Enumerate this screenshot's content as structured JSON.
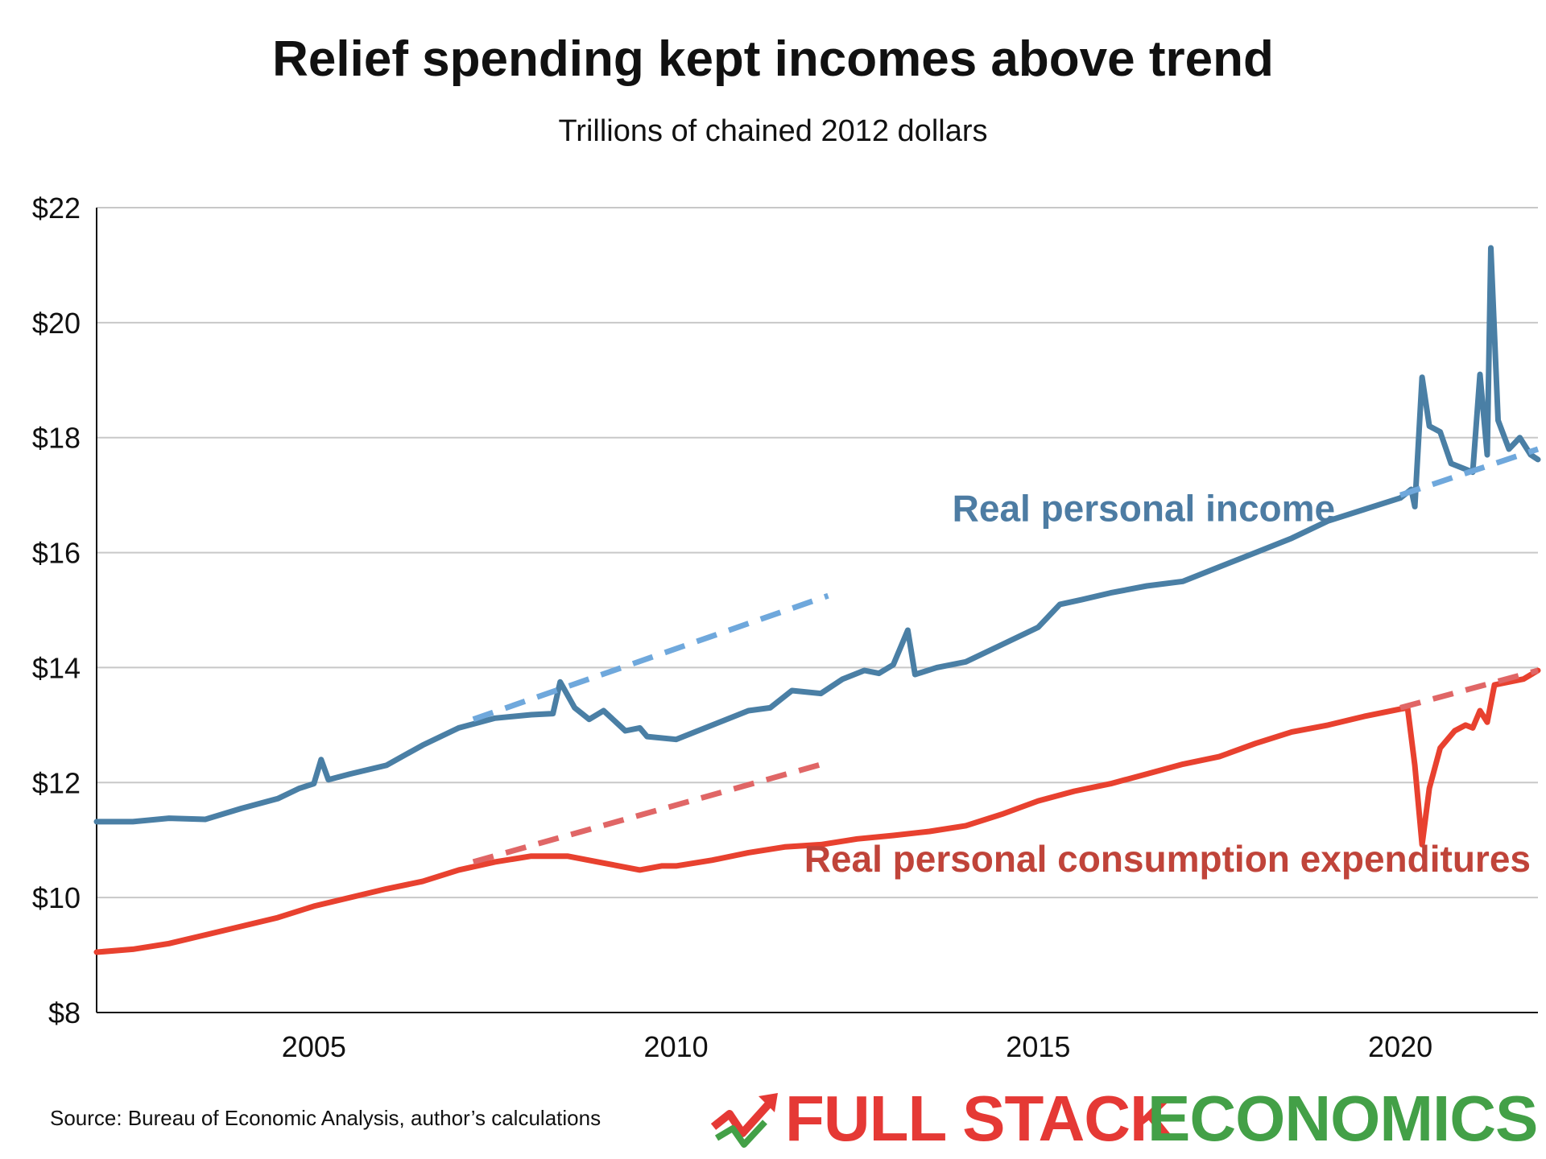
{
  "chart_data": {
    "type": "line",
    "title": "Relief spending kept incomes above trend",
    "subtitle": "Trillions of chained 2012 dollars",
    "source": "Source: Bureau of Economic Analysis, author’s calculations",
    "brand": {
      "part1": "FULL STACK",
      "part2": "ECONOMICS",
      "color1": "#e53935",
      "color2": "#43a047"
    },
    "xlim": [
      2002,
      2021.9
    ],
    "ylim": [
      8,
      22
    ],
    "x_ticks": [
      2005,
      2010,
      2015,
      2020
    ],
    "y_ticks": [
      {
        "value": 8,
        "label": "$8"
      },
      {
        "value": 10,
        "label": "$10"
      },
      {
        "value": 12,
        "label": "$12"
      },
      {
        "value": 14,
        "label": "$14"
      },
      {
        "value": 16,
        "label": "$16"
      },
      {
        "value": 18,
        "label": "$18"
      },
      {
        "value": 20,
        "label": "$20"
      },
      {
        "value": 22,
        "label": "$22"
      }
    ],
    "grid": true,
    "series": [
      {
        "name": "Real personal income",
        "color": "#4a7fa5",
        "points": [
          [
            2002.0,
            11.32
          ],
          [
            2002.5,
            11.32
          ],
          [
            2003.0,
            11.38
          ],
          [
            2003.5,
            11.36
          ],
          [
            2004.0,
            11.55
          ],
          [
            2004.5,
            11.72
          ],
          [
            2004.8,
            11.9
          ],
          [
            2005.0,
            11.98
          ],
          [
            2005.1,
            12.4
          ],
          [
            2005.2,
            12.05
          ],
          [
            2005.5,
            12.15
          ],
          [
            2006.0,
            12.3
          ],
          [
            2006.5,
            12.65
          ],
          [
            2007.0,
            12.95
          ],
          [
            2007.5,
            13.12
          ],
          [
            2008.0,
            13.18
          ],
          [
            2008.3,
            13.2
          ],
          [
            2008.4,
            13.75
          ],
          [
            2008.6,
            13.3
          ],
          [
            2008.8,
            13.1
          ],
          [
            2009.0,
            13.25
          ],
          [
            2009.3,
            12.9
          ],
          [
            2009.5,
            12.95
          ],
          [
            2009.6,
            12.8
          ],
          [
            2010.0,
            12.75
          ],
          [
            2010.5,
            13.0
          ],
          [
            2011.0,
            13.25
          ],
          [
            2011.3,
            13.3
          ],
          [
            2011.6,
            13.6
          ],
          [
            2012.0,
            13.55
          ],
          [
            2012.3,
            13.8
          ],
          [
            2012.6,
            13.95
          ],
          [
            2012.8,
            13.9
          ],
          [
            2013.0,
            14.05
          ],
          [
            2013.2,
            14.65
          ],
          [
            2013.3,
            13.88
          ],
          [
            2013.6,
            14.0
          ],
          [
            2014.0,
            14.1
          ],
          [
            2014.5,
            14.4
          ],
          [
            2015.0,
            14.7
          ],
          [
            2015.3,
            15.1
          ],
          [
            2015.6,
            15.18
          ],
          [
            2016.0,
            15.3
          ],
          [
            2016.5,
            15.42
          ],
          [
            2017.0,
            15.5
          ],
          [
            2017.5,
            15.75
          ],
          [
            2018.0,
            16.0
          ],
          [
            2018.5,
            16.25
          ],
          [
            2019.0,
            16.55
          ],
          [
            2019.5,
            16.75
          ],
          [
            2020.0,
            16.95
          ],
          [
            2020.15,
            17.1
          ],
          [
            2020.2,
            16.8
          ],
          [
            2020.3,
            19.05
          ],
          [
            2020.4,
            18.2
          ],
          [
            2020.55,
            18.1
          ],
          [
            2020.7,
            17.55
          ],
          [
            2020.9,
            17.45
          ],
          [
            2021.0,
            17.4
          ],
          [
            2021.1,
            19.1
          ],
          [
            2021.2,
            17.7
          ],
          [
            2021.25,
            21.3
          ],
          [
            2021.35,
            18.3
          ],
          [
            2021.5,
            17.8
          ],
          [
            2021.65,
            18.0
          ],
          [
            2021.8,
            17.7
          ],
          [
            2021.9,
            17.62
          ]
        ]
      },
      {
        "name": "Real personal consumption expenditures",
        "color": "#e8412f",
        "points": [
          [
            2002.0,
            9.05
          ],
          [
            2002.5,
            9.1
          ],
          [
            2003.0,
            9.2
          ],
          [
            2003.5,
            9.35
          ],
          [
            2004.0,
            9.5
          ],
          [
            2004.5,
            9.65
          ],
          [
            2005.0,
            9.85
          ],
          [
            2005.5,
            10.0
          ],
          [
            2006.0,
            10.15
          ],
          [
            2006.5,
            10.28
          ],
          [
            2007.0,
            10.48
          ],
          [
            2007.5,
            10.62
          ],
          [
            2008.0,
            10.72
          ],
          [
            2008.5,
            10.72
          ],
          [
            2009.0,
            10.6
          ],
          [
            2009.5,
            10.48
          ],
          [
            2009.8,
            10.55
          ],
          [
            2010.0,
            10.55
          ],
          [
            2010.5,
            10.65
          ],
          [
            2011.0,
            10.78
          ],
          [
            2011.5,
            10.88
          ],
          [
            2012.0,
            10.92
          ],
          [
            2012.5,
            11.02
          ],
          [
            2013.0,
            11.08
          ],
          [
            2013.5,
            11.15
          ],
          [
            2014.0,
            11.25
          ],
          [
            2014.5,
            11.45
          ],
          [
            2015.0,
            11.68
          ],
          [
            2015.5,
            11.85
          ],
          [
            2016.0,
            11.98
          ],
          [
            2016.5,
            12.15
          ],
          [
            2017.0,
            12.32
          ],
          [
            2017.5,
            12.45
          ],
          [
            2018.0,
            12.68
          ],
          [
            2018.5,
            12.88
          ],
          [
            2019.0,
            13.0
          ],
          [
            2019.5,
            13.15
          ],
          [
            2020.0,
            13.28
          ],
          [
            2020.1,
            13.3
          ],
          [
            2020.2,
            12.3
          ],
          [
            2020.3,
            10.92
          ],
          [
            2020.4,
            11.9
          ],
          [
            2020.55,
            12.6
          ],
          [
            2020.75,
            12.9
          ],
          [
            2020.9,
            13.0
          ],
          [
            2021.0,
            12.95
          ],
          [
            2021.1,
            13.25
          ],
          [
            2021.2,
            13.05
          ],
          [
            2021.3,
            13.7
          ],
          [
            2021.5,
            13.75
          ],
          [
            2021.7,
            13.8
          ],
          [
            2021.9,
            13.95
          ]
        ]
      }
    ],
    "trends": [
      {
        "color": "#6fa8dc",
        "points": [
          [
            2007.2,
            13.1
          ],
          [
            2012.1,
            15.25
          ]
        ]
      },
      {
        "color": "#e06666",
        "points": [
          [
            2007.2,
            10.62
          ],
          [
            2012.1,
            12.35
          ]
        ]
      },
      {
        "color": "#6fa8dc",
        "points": [
          [
            2020.0,
            17.0
          ],
          [
            2021.9,
            17.8
          ]
        ]
      },
      {
        "color": "#e06666",
        "points": [
          [
            2020.0,
            13.3
          ],
          [
            2021.9,
            13.95
          ]
        ]
      }
    ],
    "annotations": [
      {
        "text": "Real personal income",
        "color": "#4d7ca3",
        "x": 2019.1,
        "y": 16.55
      },
      {
        "text": "Real personal consumption expenditures",
        "color": "#c0443a",
        "x": 2021.8,
        "y": 10.45
      }
    ]
  }
}
